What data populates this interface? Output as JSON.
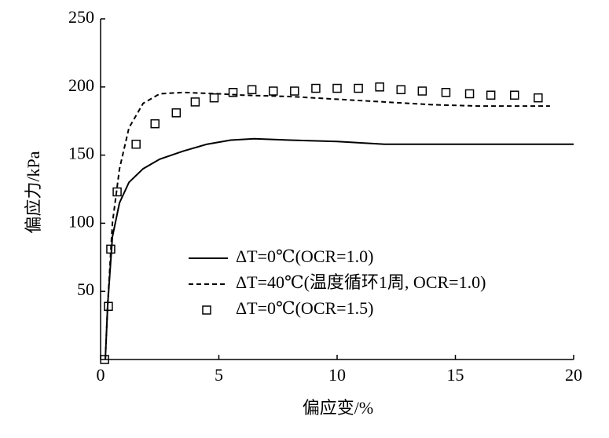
{
  "chart_data": {
    "type": "line",
    "x_label": "偏应变/%",
    "y_label": "偏应力/kPa",
    "xlim": [
      0,
      20
    ],
    "xticks": [
      0,
      5,
      10,
      15,
      20
    ],
    "ylim": [
      0,
      250
    ],
    "yticks": [
      50,
      100,
      150,
      200,
      250
    ],
    "grid": false,
    "legend": "lower right",
    "series": [
      {
        "name": "ΔT=0℃(OCR=1.0)",
        "color": "#000000",
        "style": "solid",
        "x": [
          0.2,
          0.3,
          0.5,
          0.8,
          1.2,
          1.8,
          2.5,
          3.5,
          4.5,
          5.5,
          6.5,
          8,
          10,
          12,
          15,
          20
        ],
        "values": [
          0,
          40,
          90,
          115,
          130,
          140,
          147,
          153,
          158,
          161,
          162,
          161,
          160,
          158,
          158,
          158
        ]
      },
      {
        "name": "ΔT=40℃(温度循环1周, OCR=1.0)",
        "color": "#000000",
        "style": "dashed",
        "x": [
          0.2,
          0.3,
          0.5,
          0.8,
          1.2,
          1.8,
          2.5,
          3.5,
          5,
          6,
          8,
          10,
          12,
          14,
          16,
          18,
          19
        ],
        "values": [
          0,
          40,
          100,
          140,
          170,
          188,
          195,
          196,
          195,
          194,
          193,
          191,
          189,
          187,
          186,
          186,
          186
        ]
      },
      {
        "name": "ΔT=0℃(OCR=1.5)",
        "color": "#000000",
        "style": "square",
        "x": [
          0.17,
          0.33,
          0.43,
          0.7,
          1.5,
          2.3,
          3.2,
          4,
          4.8,
          5.6,
          6.4,
          7.3,
          8.2,
          9.1,
          10,
          10.9,
          11.8,
          12.7,
          13.6,
          14.6,
          15.6,
          16.5,
          17.5,
          18.5
        ],
        "values": [
          0,
          39,
          81,
          123,
          158,
          173,
          181,
          189,
          192,
          196,
          198,
          197,
          197,
          199,
          199,
          199,
          200,
          198,
          197,
          196,
          195,
          194,
          194,
          192
        ]
      }
    ]
  }
}
